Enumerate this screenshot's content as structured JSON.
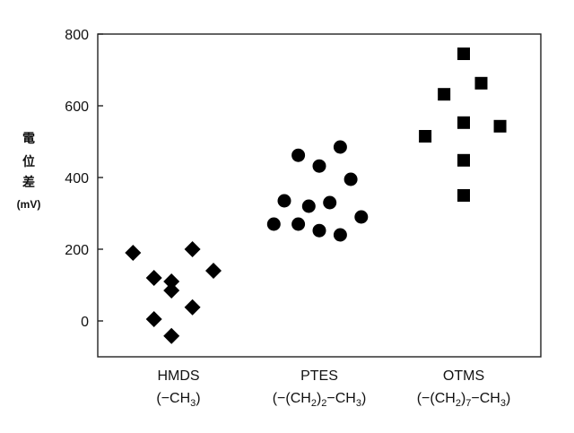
{
  "chart_data": {
    "type": "scatter",
    "ylabel_lines": [
      "電",
      "位",
      "差",
      "(mV)"
    ],
    "ylim": [
      -100,
      800
    ],
    "yticks": [
      0,
      200,
      400,
      600,
      800
    ],
    "grid": false,
    "legend": "none",
    "categories": [
      {
        "name": "HMDS",
        "sub": [
          "(−CH",
          "3",
          ")"
        ]
      },
      {
        "name": "PTES",
        "sub": [
          "(−(CH",
          "2",
          ")",
          "2",
          "−CH",
          "3",
          ")"
        ]
      },
      {
        "name": "OTMS",
        "sub": [
          "(−(CH",
          "2",
          ")",
          "7",
          "−CH",
          "3",
          ")"
        ]
      }
    ],
    "series": [
      {
        "category": "HMDS",
        "marker": "diamond",
        "points": [
          {
            "x": -0.65,
            "y": 190
          },
          {
            "x": -0.35,
            "y": 120
          },
          {
            "x": -0.1,
            "y": 110
          },
          {
            "x": -0.1,
            "y": 85
          },
          {
            "x": 0.2,
            "y": 200
          },
          {
            "x": 0.5,
            "y": 140
          },
          {
            "x": -0.35,
            "y": 5
          },
          {
            "x": 0.2,
            "y": 38
          },
          {
            "x": -0.1,
            "y": -42
          }
        ]
      },
      {
        "category": "PTES",
        "marker": "circle",
        "points": [
          {
            "x": -0.65,
            "y": 270
          },
          {
            "x": -0.5,
            "y": 335
          },
          {
            "x": -0.3,
            "y": 462
          },
          {
            "x": -0.3,
            "y": 270
          },
          {
            "x": -0.15,
            "y": 320
          },
          {
            "x": 0.0,
            "y": 432
          },
          {
            "x": 0.0,
            "y": 252
          },
          {
            "x": 0.15,
            "y": 330
          },
          {
            "x": 0.3,
            "y": 485
          },
          {
            "x": 0.3,
            "y": 240
          },
          {
            "x": 0.45,
            "y": 395
          },
          {
            "x": 0.6,
            "y": 290
          }
        ]
      },
      {
        "category": "OTMS",
        "marker": "square",
        "points": [
          {
            "x": -0.55,
            "y": 515
          },
          {
            "x": -0.28,
            "y": 632
          },
          {
            "x": 0.0,
            "y": 745
          },
          {
            "x": 0.0,
            "y": 553
          },
          {
            "x": 0.0,
            "y": 448
          },
          {
            "x": 0.0,
            "y": 350
          },
          {
            "x": 0.25,
            "y": 663
          },
          {
            "x": 0.52,
            "y": 543
          }
        ]
      }
    ]
  }
}
